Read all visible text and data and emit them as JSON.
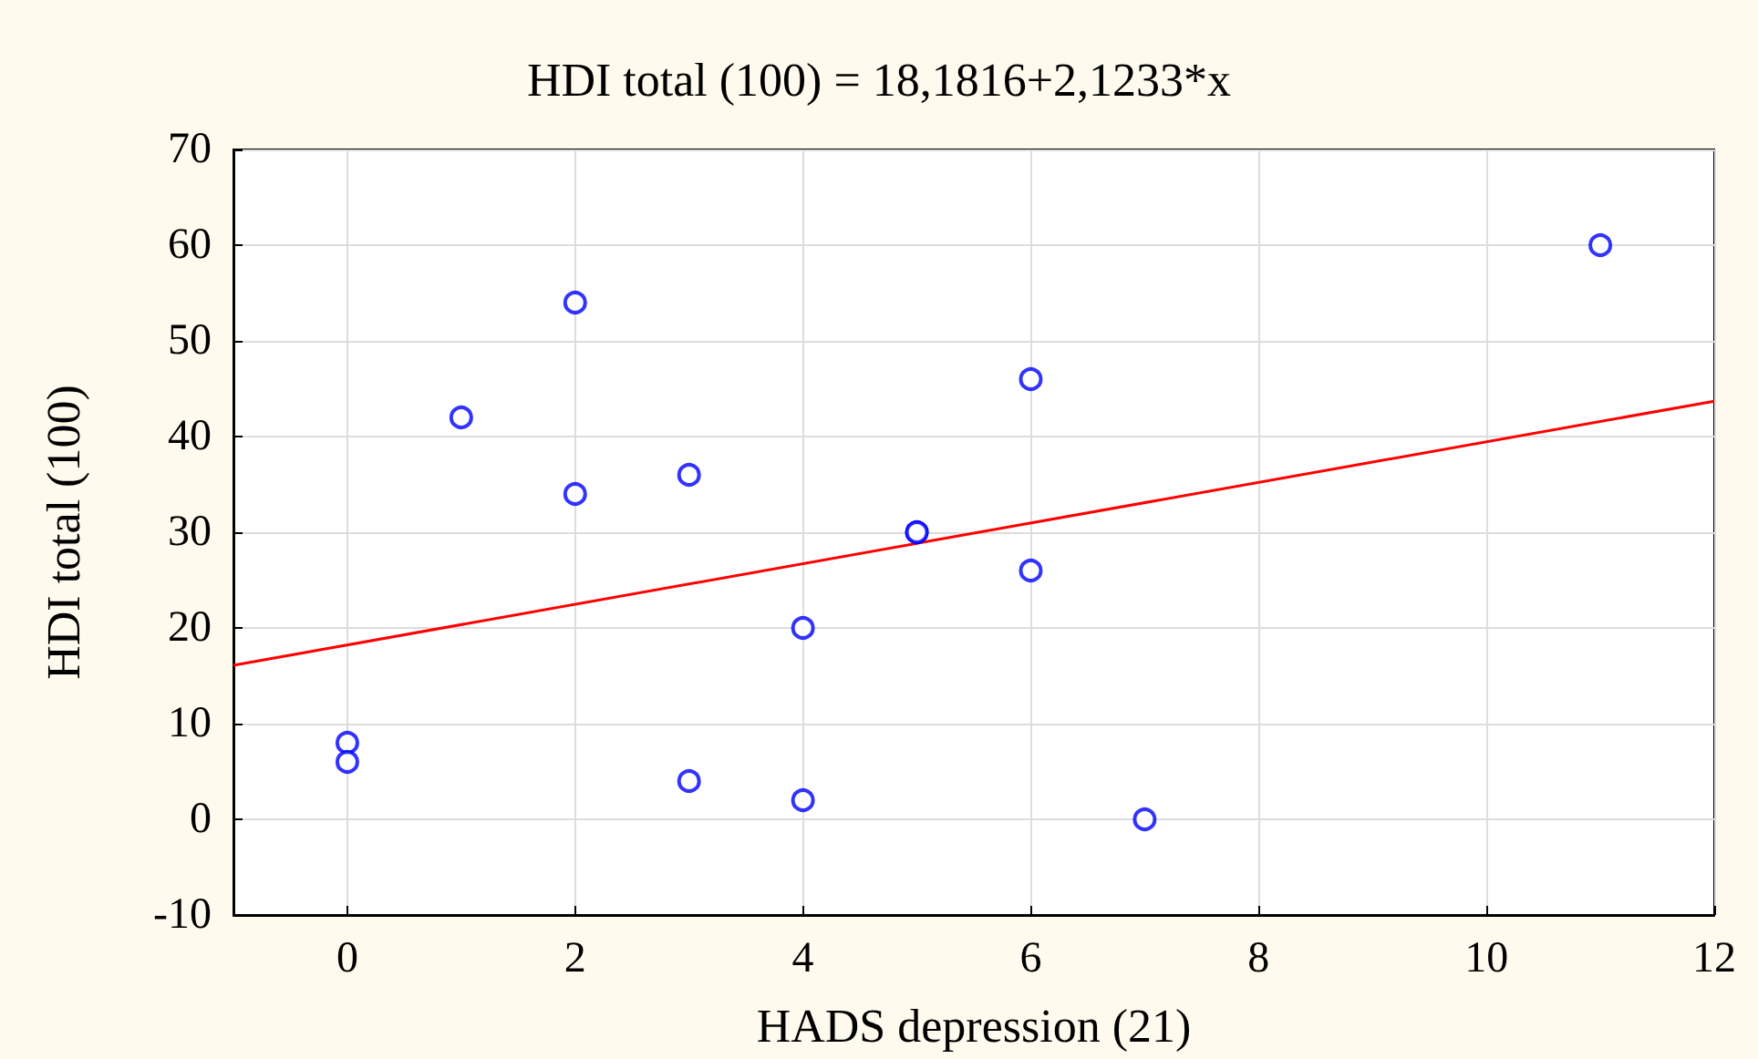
{
  "chart_data": {
    "type": "scatter",
    "title": "HDI total (100) = 18,1816+2,1233*x",
    "xlabel": "HADS depression (21)",
    "ylabel": "HDI total (100)",
    "series": [
      {
        "color": "#0000ff",
        "marker": "circle",
        "x": [
          0,
          0,
          1,
          2,
          2,
          3,
          3,
          4,
          4,
          5,
          5,
          6,
          6,
          7,
          11
        ],
        "values": [
          8,
          6,
          42,
          54,
          34,
          36,
          4,
          20,
          2,
          30,
          30,
          46,
          26,
          0,
          60
        ]
      },
      {
        "type": "line",
        "color": "#ff0000",
        "marker": "none",
        "line_style": "solid",
        "x": [
          -1,
          12
        ],
        "values": [
          16.1,
          43.7
        ]
      }
    ],
    "xlim": [
      -1,
      12
    ],
    "xticks": [
      0,
      2,
      4,
      6,
      8,
      10,
      12
    ],
    "ylim": [
      -10,
      70
    ],
    "yticks": [
      -10,
      0,
      10,
      20,
      30,
      40,
      50,
      60,
      70
    ],
    "grid": true
  }
}
